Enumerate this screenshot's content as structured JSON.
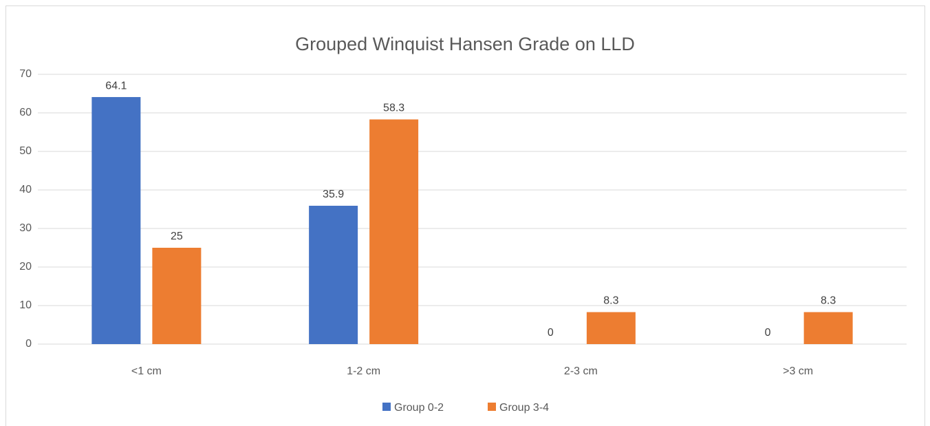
{
  "chart_data": {
    "type": "bar",
    "title": "Grouped Winquist Hansen Grade on LLD",
    "categories": [
      "<1 cm",
      "1-2 cm",
      "2-3 cm",
      ">3 cm"
    ],
    "series": [
      {
        "name": "Group 0-2",
        "color": "#4472c4",
        "values": [
          64.1,
          35.9,
          0,
          0
        ]
      },
      {
        "name": "Group 3-4",
        "color": "#ed7d31",
        "values": [
          25,
          58.3,
          8.3,
          8.3
        ]
      }
    ],
    "ylim": [
      0,
      70
    ],
    "yticks": [
      0,
      10,
      20,
      30,
      40,
      50,
      60,
      70
    ],
    "grid": true,
    "legend": "bottom"
  }
}
